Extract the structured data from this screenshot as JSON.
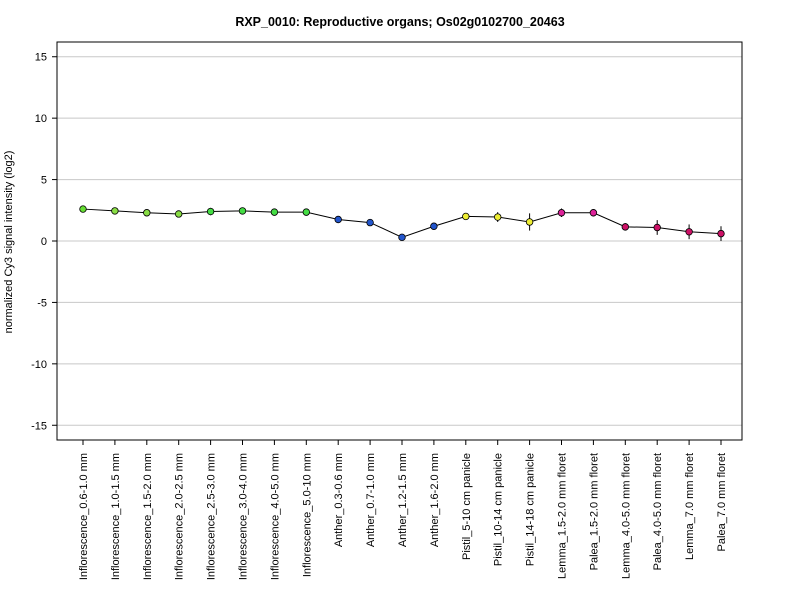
{
  "chart_data": {
    "type": "line",
    "title": "RXP_0010: Reproductive organs; Os02g0102700_20463",
    "xlabel": "",
    "ylabel": "normalized Cy3 signal intensity (log2)",
    "ylim": [
      -16.2,
      16.2
    ],
    "yticks": [
      -15,
      -10,
      -5,
      0,
      5,
      10,
      15
    ],
    "grid": "horizontal",
    "categories": [
      "Inflorescence_0.6-1.0 mm",
      "Inflorescence_1.0-1.5 mm",
      "Inflorescence_1.5-2.0 mm",
      "Inflorescence_2.0-2.5 mm",
      "Inflorescence_2.5-3.0 mm",
      "Inflorescence_3.0-4.0 mm",
      "Inflorescence_4.0-5.0 mm",
      "Inflorescence_5.0-10 mm",
      "Anther_0.3-0.6 mm",
      "Anther_0.7-1.0 mm",
      "Anther_1.2-1.5 mm",
      "Anther_1.6-2.0 mm",
      "Pistil_5-10 cm panicle",
      "Pistil_10-14 cm panicle",
      "Pistil_14-18 cm panicle",
      "Lemma_1.5-2.0 mm floret",
      "Palea_1.5-2.0 mm floret",
      "Lemma_4.0-5.0 mm floret",
      "Palea_4.0-5.0 mm floret",
      "Lemma_7.0 mm floret",
      "Palea_7.0 mm floret"
    ],
    "values": [
      2.6,
      2.45,
      2.3,
      2.2,
      2.4,
      2.45,
      2.35,
      2.35,
      1.75,
      1.5,
      0.3,
      1.2,
      2.0,
      1.95,
      1.55,
      2.3,
      2.3,
      1.15,
      1.1,
      0.75,
      0.6
    ],
    "errors": [
      0.15,
      0.1,
      0.1,
      0.1,
      0.3,
      0.15,
      0.1,
      0.1,
      0.2,
      0.1,
      0.15,
      0.15,
      0.2,
      0.4,
      0.7,
      0.35,
      0.3,
      0.3,
      0.6,
      0.6,
      0.6
    ],
    "point_colors": [
      "#66dd33",
      "#88dd44",
      "#88dd44",
      "#88dd44",
      "#44dd44",
      "#44dd44",
      "#44dd44",
      "#44dd44",
      "#2255cc",
      "#2255cc",
      "#2255cc",
      "#2255cc",
      "#eeee33",
      "#eeee33",
      "#eeee33",
      "#dd2299",
      "#dd2299",
      "#cc1166",
      "#cc1166",
      "#cc1166",
      "#cc1166"
    ],
    "line_color": "#000000",
    "grid_color": "#c8c8c8"
  }
}
